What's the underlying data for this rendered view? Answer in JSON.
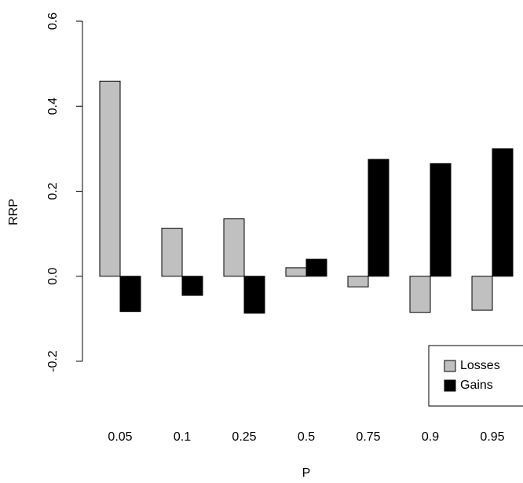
{
  "chart_data": {
    "type": "bar",
    "x_label": "P",
    "y_label": "RRP",
    "categories": [
      "0.05",
      "0.1",
      "0.25",
      "0.5",
      "0.75",
      "0.9",
      "0.95"
    ],
    "series": [
      {
        "name": "Losses",
        "color": "#c0c0c0",
        "values": [
          0.459,
          0.113,
          0.135,
          0.02,
          -0.025,
          -0.085,
          -0.08
        ]
      },
      {
        "name": "Gains",
        "color": "#000000",
        "values": [
          -0.083,
          -0.045,
          -0.087,
          0.04,
          0.275,
          0.265,
          0.3
        ]
      }
    ],
    "ylim": [
      -0.2,
      0.6
    ],
    "yticks": [
      -0.2,
      {
        "value": 0,
        "label": "0.0"
      },
      0.2,
      0.4,
      0.6
    ],
    "legend": "bottom-right"
  }
}
